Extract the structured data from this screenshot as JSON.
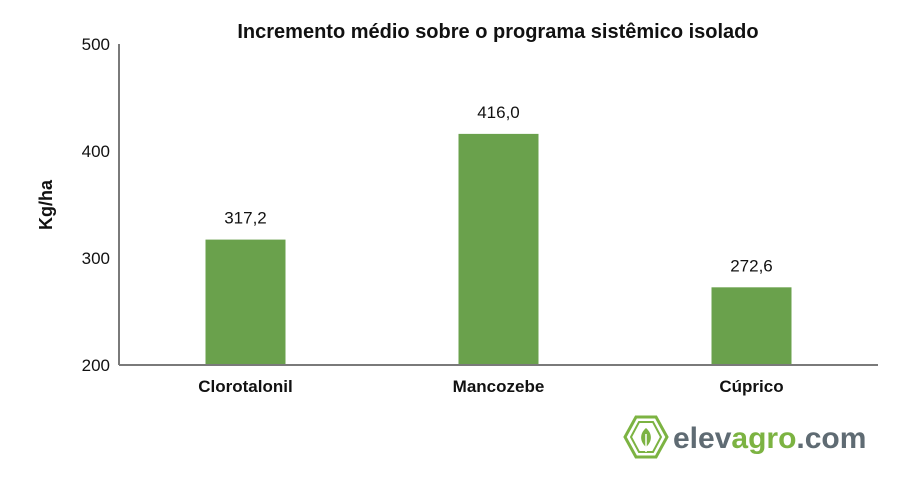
{
  "chart_data": {
    "type": "bar",
    "title": "Incremento médio sobre o programa sistêmico isolado",
    "xlabel": "",
    "ylabel": "Kg/ha",
    "categories": [
      "Clorotalonil",
      "Mancozebe",
      "Cúprico"
    ],
    "values": [
      317.2,
      416.0,
      272.6
    ],
    "value_labels": [
      "317,2",
      "416,0",
      "272,6"
    ],
    "ylim": [
      200,
      500
    ],
    "yticks": [
      "200",
      "300",
      "400",
      "500"
    ],
    "bar_color": "#6aa14c",
    "grid": false,
    "legend": "none"
  },
  "brand": {
    "name_part1": "elev",
    "name_part2": "agro",
    "name_part3": ".com",
    "color_dark": "#5f6b73",
    "color_green": "#7cb342",
    "icon": "leaf-hexagon-icon"
  }
}
